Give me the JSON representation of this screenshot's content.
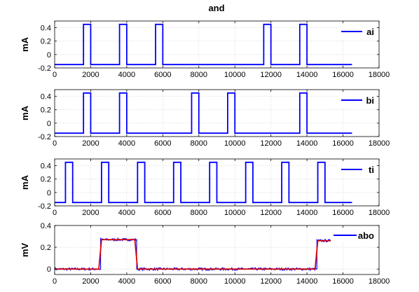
{
  "figure": {
    "title": "and"
  },
  "chart_data": [
    {
      "type": "line",
      "ylabel": "mA",
      "xlim": [
        0,
        18000
      ],
      "ylim": [
        -0.2,
        0.5
      ],
      "xticks": [
        0,
        2000,
        4000,
        6000,
        8000,
        10000,
        12000,
        14000,
        16000,
        18000
      ],
      "yticks": [
        -0.2,
        0,
        0.2,
        0.4
      ],
      "ytick_labels": [
        "-0.2",
        "0",
        "0.2",
        "0.4"
      ],
      "grid": true,
      "legend_position": "top-right",
      "series": [
        {
          "name": "ai",
          "color": "#0000ff",
          "x": [
            0,
            1600,
            1600,
            2000,
            2000,
            3600,
            3600,
            4000,
            4000,
            5600,
            5600,
            6000,
            6000,
            11600,
            11600,
            12000,
            12000,
            13600,
            13600,
            14000,
            14000,
            16500
          ],
          "y": [
            -0.15,
            -0.15,
            0.45,
            0.45,
            -0.15,
            -0.15,
            0.45,
            0.45,
            -0.15,
            -0.15,
            0.45,
            0.45,
            -0.15,
            -0.15,
            0.45,
            0.45,
            -0.15,
            -0.15,
            0.45,
            0.45,
            -0.15,
            -0.15
          ]
        }
      ]
    },
    {
      "type": "line",
      "ylabel": "mA",
      "xlim": [
        0,
        18000
      ],
      "ylim": [
        -0.2,
        0.5
      ],
      "xticks": [
        0,
        2000,
        4000,
        6000,
        8000,
        10000,
        12000,
        14000,
        16000,
        18000
      ],
      "yticks": [
        -0.2,
        0,
        0.2,
        0.4
      ],
      "ytick_labels": [
        "-0.2",
        "0",
        "0.2",
        "0.4"
      ],
      "grid": true,
      "legend_position": "top-right",
      "series": [
        {
          "name": "bi",
          "color": "#0000ff",
          "x": [
            0,
            1600,
            1600,
            2000,
            2000,
            3600,
            3600,
            4000,
            4000,
            7600,
            7600,
            8000,
            8000,
            9600,
            9600,
            10000,
            10000,
            13600,
            13600,
            14000,
            14000,
            16500
          ],
          "y": [
            -0.15,
            -0.15,
            0.45,
            0.45,
            -0.15,
            -0.15,
            0.45,
            0.45,
            -0.15,
            -0.15,
            0.45,
            0.45,
            -0.15,
            -0.15,
            0.45,
            0.45,
            -0.15,
            -0.15,
            0.45,
            0.45,
            -0.15,
            -0.15
          ]
        }
      ]
    },
    {
      "type": "line",
      "ylabel": "mA",
      "xlim": [
        0,
        18000
      ],
      "ylim": [
        -0.2,
        0.5
      ],
      "xticks": [
        0,
        2000,
        4000,
        6000,
        8000,
        10000,
        12000,
        14000,
        16000,
        18000
      ],
      "yticks": [
        -0.2,
        0,
        0.2,
        0.4
      ],
      "ytick_labels": [
        "-0.2",
        "0",
        "0.2",
        "0.4"
      ],
      "grid": true,
      "legend_position": "top-right",
      "series": [
        {
          "name": "ti",
          "color": "#0000ff",
          "x": [
            0,
            600,
            600,
            1000,
            1000,
            2600,
            2600,
            3000,
            3000,
            4600,
            4600,
            5000,
            5000,
            6600,
            6600,
            7000,
            7000,
            8600,
            8600,
            9000,
            9000,
            10600,
            10600,
            11000,
            11000,
            12600,
            12600,
            13000,
            13000,
            14600,
            14600,
            15000,
            15000,
            16500
          ],
          "y": [
            -0.15,
            -0.15,
            0.45,
            0.45,
            -0.15,
            -0.15,
            0.45,
            0.45,
            -0.15,
            -0.15,
            0.45,
            0.45,
            -0.15,
            -0.15,
            0.45,
            0.45,
            -0.15,
            -0.15,
            0.45,
            0.45,
            -0.15,
            -0.15,
            0.45,
            0.45,
            -0.15,
            -0.15,
            0.45,
            0.45,
            -0.15,
            -0.15,
            0.45,
            0.45,
            -0.15,
            -0.15
          ]
        }
      ]
    },
    {
      "type": "line",
      "ylabel": "mV",
      "xlim": [
        0,
        18000
      ],
      "ylim": [
        -0.05,
        0.4
      ],
      "xticks": [
        0,
        2000,
        4000,
        6000,
        8000,
        10000,
        12000,
        14000,
        16000,
        18000
      ],
      "yticks": [
        0,
        0.2,
        0.4
      ],
      "ytick_labels": [
        "0",
        "0.2",
        "0.4"
      ],
      "grid": true,
      "legend_position": "top-right",
      "series": [
        {
          "name": "abo",
          "color": "#0000ff",
          "noise_amplitude": 0.012,
          "x": [
            0,
            2550,
            2550,
            4550,
            4550,
            14550,
            14550,
            16500
          ],
          "y": [
            0,
            0,
            0.27,
            0.27,
            0,
            0,
            0.26,
            0.26
          ]
        },
        {
          "color": "#dd0000",
          "x": [
            0,
            2450,
            2600,
            4450,
            4600,
            14450,
            14600,
            16500
          ],
          "y": [
            0,
            0,
            0.27,
            0.27,
            0,
            0,
            0.26,
            0.26
          ]
        }
      ]
    }
  ]
}
